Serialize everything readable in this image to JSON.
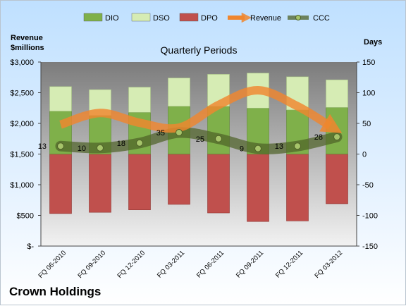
{
  "chart_data": {
    "type": "bar",
    "title": "Quarterly Periods",
    "company": "Crown Holdings",
    "ylabel_left": [
      "Revenue",
      "$millions"
    ],
    "ylabel_right": "Days",
    "left_ticks": [
      "$-",
      "$500",
      "$1,000",
      "$1,500",
      "$2,000",
      "$2,500",
      "$3,000"
    ],
    "right_ticks": [
      "-150",
      "-100",
      "-50",
      "0",
      "50",
      "100",
      "150"
    ],
    "ylim_left": [
      0,
      3000
    ],
    "ylim_right": [
      -150,
      150
    ],
    "legend_position": "top",
    "grid": false,
    "categories": [
      "FQ 06-2010",
      "FQ 09-2010",
      "FQ 12-2010",
      "FQ 03-2011",
      "FQ 06-2011",
      "FQ 09-2011",
      "FQ 12-2011",
      "FQ 03-2012"
    ],
    "series": [
      {
        "name": "DIO",
        "kind": "bar",
        "axis": "days",
        "color": "#7fb04a",
        "values": [
          70,
          63,
          68,
          78,
          78,
          75,
          72,
          76
        ]
      },
      {
        "name": "DSO",
        "kind": "bar",
        "axis": "days",
        "color": "#d6ecb4",
        "values": [
          40,
          42,
          41,
          46,
          52,
          57,
          54,
          45
        ]
      },
      {
        "name": "DPO",
        "kind": "bar",
        "axis": "days",
        "color": "#c0504d",
        "values": [
          -97,
          -95,
          -91,
          -82,
          -96,
          -110,
          -109,
          -81
        ]
      },
      {
        "name": "Revenue",
        "kind": "line",
        "axis": "revenue",
        "color": "#f0862e",
        "values": [
          1980,
          2170,
          2010,
          1930,
          2300,
          2540,
          2280,
          1960
        ]
      },
      {
        "name": "CCC",
        "kind": "line",
        "axis": "days",
        "color": "#4f6228",
        "values": [
          13,
          10,
          18,
          35,
          25,
          9,
          13,
          28
        ]
      }
    ],
    "data_labels": [
      "13",
      "10",
      "18",
      "35",
      "25",
      "9",
      "13",
      "28"
    ]
  }
}
